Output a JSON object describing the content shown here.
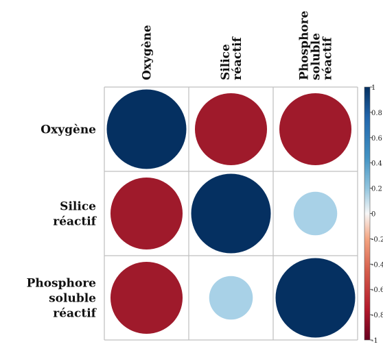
{
  "chart_data": {
    "type": "heatmap",
    "variables": [
      [
        "Oxygène"
      ],
      [
        "Silice",
        "réactif"
      ],
      [
        "Phosphore",
        "soluble",
        "réactif"
      ]
    ],
    "matrix": [
      [
        1.0,
        -0.82,
        -0.82
      ],
      [
        -0.82,
        1.0,
        0.3
      ],
      [
        -0.82,
        0.3,
        1.0
      ]
    ],
    "colorbar": {
      "ticks": [
        "1",
        "0.8",
        "0.6",
        "0.4",
        "0.2",
        "0",
        "-0.2",
        "-0.4",
        "-0.6",
        "-0.8",
        "-1"
      ],
      "range": [
        -1,
        1
      ]
    },
    "colors": {
      "positive_strong": "#053061",
      "positive_light": "#a8d1e7",
      "neutral": "#f7f7f7",
      "negative_light": "#f4a582",
      "negative_strong": "#b2232f",
      "grid": "#bfbfbf"
    }
  }
}
